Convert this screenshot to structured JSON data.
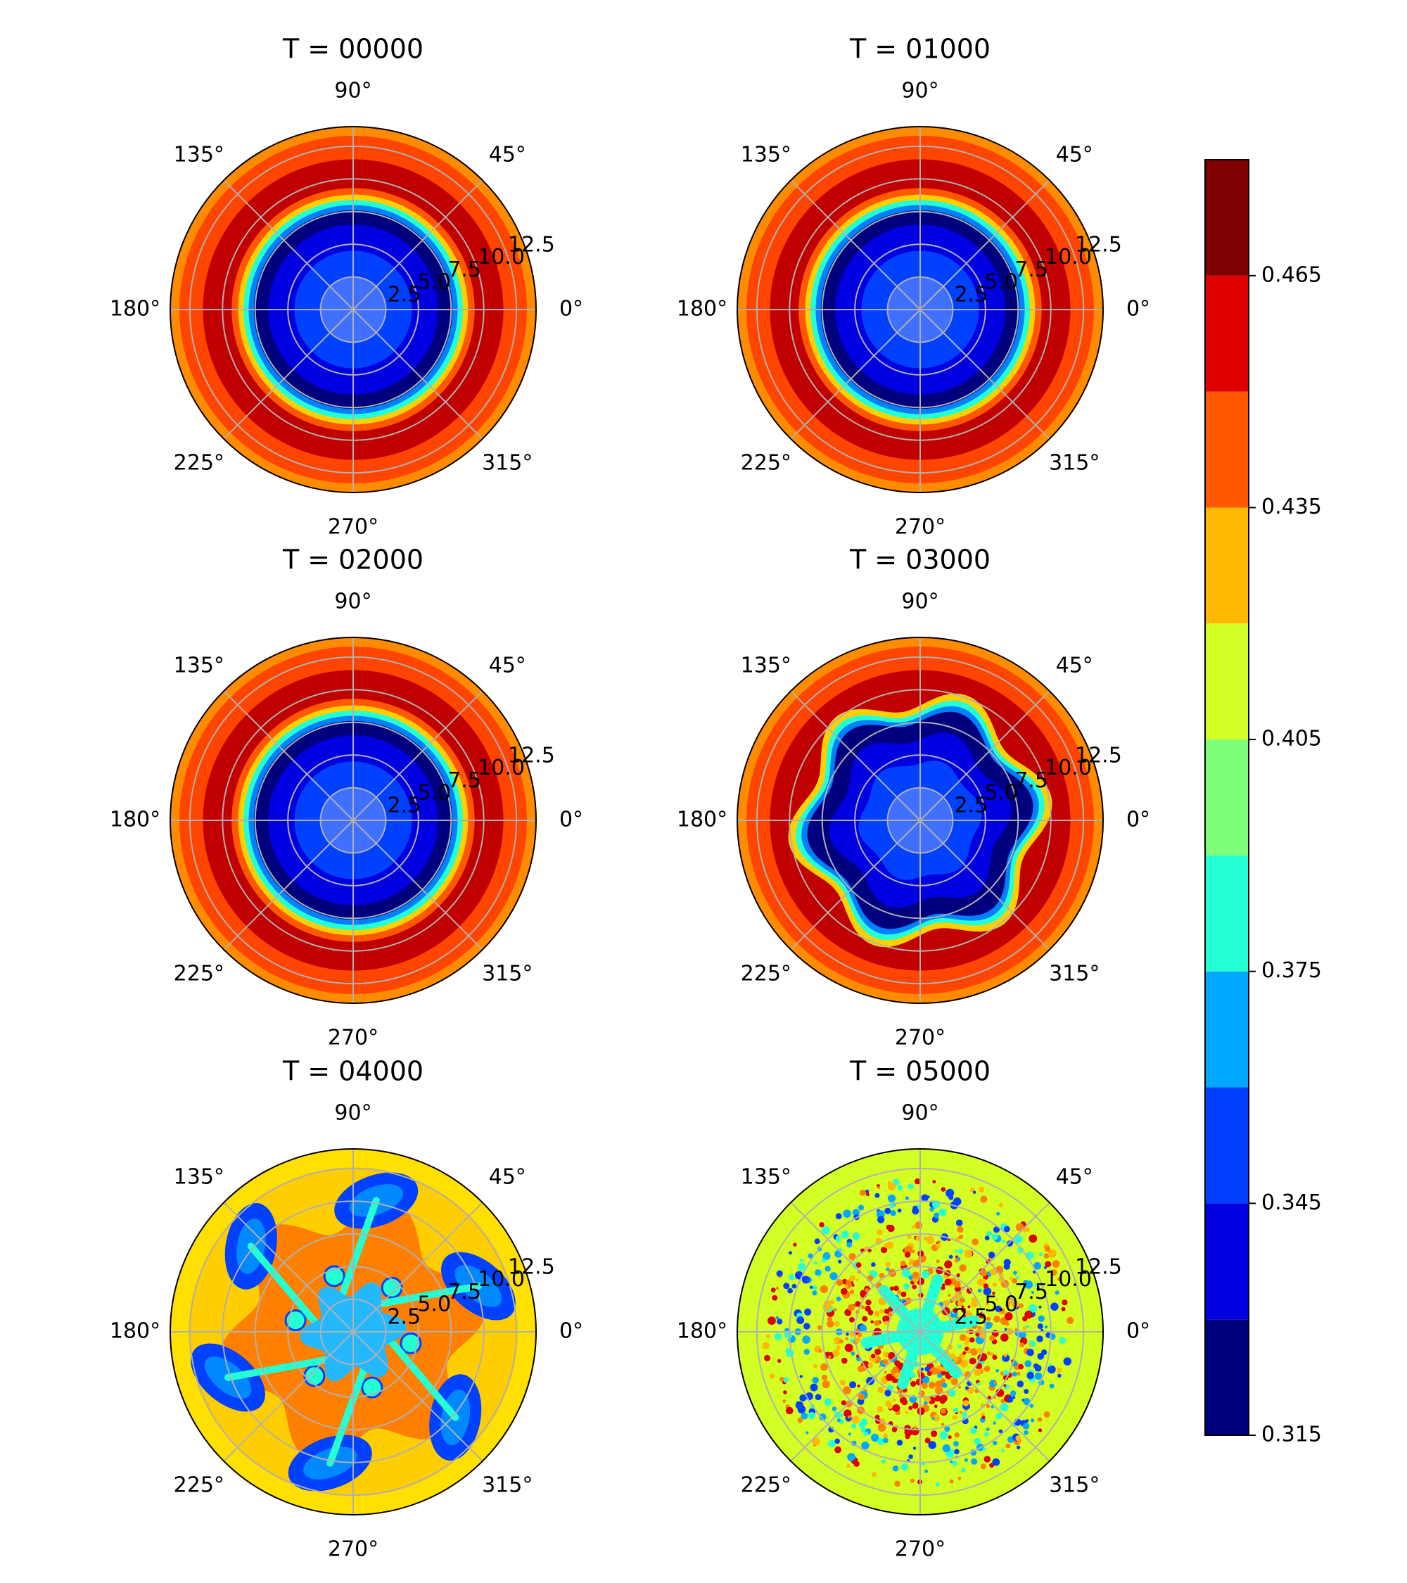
{
  "chart_data": {
    "type": "heatmap",
    "subtype": "polar filled contour",
    "colormap": "jet",
    "angle_labels": [
      "0°",
      "45°",
      "90°",
      "135°",
      "180°",
      "225°",
      "270°",
      "315°"
    ],
    "radial_ticks": [
      "2.5",
      "5.0",
      "7.5",
      "10.0",
      "12.5"
    ],
    "rlim": [
      0,
      14
    ],
    "grid": true,
    "colorbar": {
      "position": "right",
      "levels": [
        0.315,
        0.33,
        0.345,
        0.36,
        0.375,
        0.39,
        0.405,
        0.42,
        0.435,
        0.45,
        0.465,
        0.48
      ],
      "tick_labels": [
        "0.315",
        "0.345",
        "0.375",
        "0.405",
        "0.435",
        "0.465"
      ],
      "colors": [
        "#00007f",
        "#0000e0",
        "#0040ff",
        "#00a8ff",
        "#24ffd3",
        "#7dff7a",
        "#d3ff24",
        "#ffb900",
        "#ff5800",
        "#e00000",
        "#7f0000"
      ]
    },
    "panels": [
      {
        "title": "T = 00000",
        "pattern": "axisymmetric",
        "bands": [
          [
            0,
            2.5,
            "#4070ff"
          ],
          [
            2.5,
            4.5,
            "#0040ff"
          ],
          [
            4.5,
            6.5,
            "#0000e0"
          ],
          [
            6.5,
            7.6,
            "#00007f"
          ],
          [
            7.6,
            8.0,
            "#0080ff"
          ],
          [
            8.0,
            8.4,
            "#24ffd3"
          ],
          [
            8.4,
            8.8,
            "#ffd000"
          ],
          [
            8.8,
            9.3,
            "#ff5800"
          ],
          [
            9.3,
            11.5,
            "#c00000"
          ],
          [
            11.5,
            13.3,
            "#ff4500"
          ],
          [
            13.3,
            14,
            "#ff8c00"
          ]
        ]
      },
      {
        "title": "T = 01000",
        "pattern": "axisymmetric",
        "bands": [
          [
            0,
            2.5,
            "#4070ff"
          ],
          [
            2.5,
            4.5,
            "#0040ff"
          ],
          [
            4.5,
            6.5,
            "#0000e0"
          ],
          [
            6.5,
            7.6,
            "#00007f"
          ],
          [
            7.6,
            8.0,
            "#0080ff"
          ],
          [
            8.0,
            8.4,
            "#24ffd3"
          ],
          [
            8.4,
            8.8,
            "#ffd000"
          ],
          [
            8.8,
            9.3,
            "#ff5800"
          ],
          [
            9.3,
            11.5,
            "#c00000"
          ],
          [
            11.5,
            13.3,
            "#ff4500"
          ],
          [
            13.3,
            14,
            "#ff8c00"
          ]
        ]
      },
      {
        "title": "T = 02000",
        "pattern": "axisymmetric",
        "bands": [
          [
            0,
            2.5,
            "#4070ff"
          ],
          [
            2.5,
            4.5,
            "#0040ff"
          ],
          [
            4.5,
            6.5,
            "#0000e0"
          ],
          [
            6.5,
            7.6,
            "#00007f"
          ],
          [
            7.6,
            8.0,
            "#0080ff"
          ],
          [
            8.0,
            8.4,
            "#24ffd3"
          ],
          [
            8.4,
            8.8,
            "#ffd000"
          ],
          [
            8.8,
            9.3,
            "#ff5800"
          ],
          [
            9.3,
            11.5,
            "#c00000"
          ],
          [
            11.5,
            13.3,
            "#ff4500"
          ],
          [
            13.3,
            14,
            "#ff8c00"
          ]
        ]
      },
      {
        "title": "T = 03000",
        "pattern": "wavy",
        "bands": [
          [
            0,
            2.5,
            "#4070ff"
          ],
          [
            2.5,
            4.5,
            "#0040ff"
          ],
          [
            4.5,
            6.5,
            "#0000e0"
          ],
          [
            6.5,
            8.0,
            "#00007f"
          ],
          [
            8.0,
            8.4,
            "#0080ff"
          ],
          [
            8.4,
            8.8,
            "#24ffd3"
          ],
          [
            8.8,
            9.3,
            "#ffd000"
          ],
          [
            9.3,
            11.5,
            "#c00000"
          ],
          [
            11.5,
            13.3,
            "#ff4500"
          ],
          [
            13.3,
            14,
            "#ff8c00"
          ]
        ]
      },
      {
        "title": "T = 04000",
        "pattern": "vortices",
        "background": "#ffe000"
      },
      {
        "title": "T = 05000",
        "pattern": "turbulent",
        "background": "#d3ff24"
      }
    ]
  }
}
